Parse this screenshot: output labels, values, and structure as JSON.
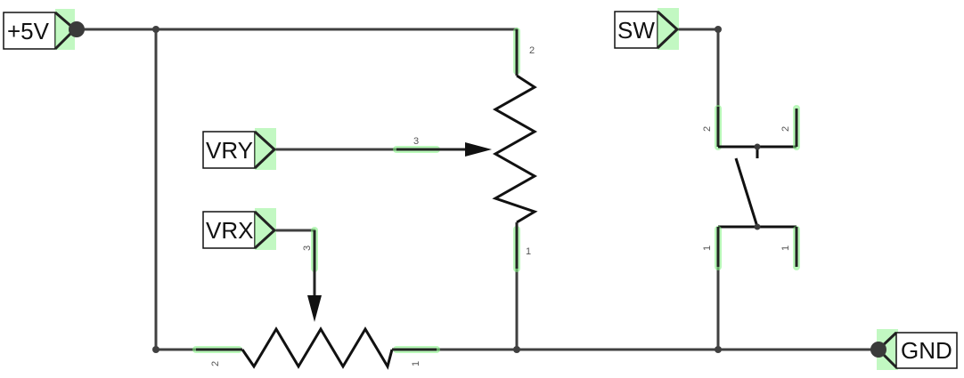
{
  "nets": {
    "vcc": "+5V",
    "gnd": "GND",
    "vry": "VRY",
    "vrx": "VRX",
    "sw": "SW"
  },
  "pin_numbers": {
    "pot_y_top": "2",
    "pot_y_wiper": "3",
    "pot_y_bottom": "1",
    "pot_x_wiper": "3",
    "pot_x_left": "2",
    "pot_x_right": "1",
    "sw_top_left": "2",
    "sw_top_right": "2",
    "sw_bottom_left": "1",
    "sw_bottom_right": "1"
  },
  "colors": {
    "wire": "#404040",
    "pin_highlight": "#7ff27f"
  }
}
